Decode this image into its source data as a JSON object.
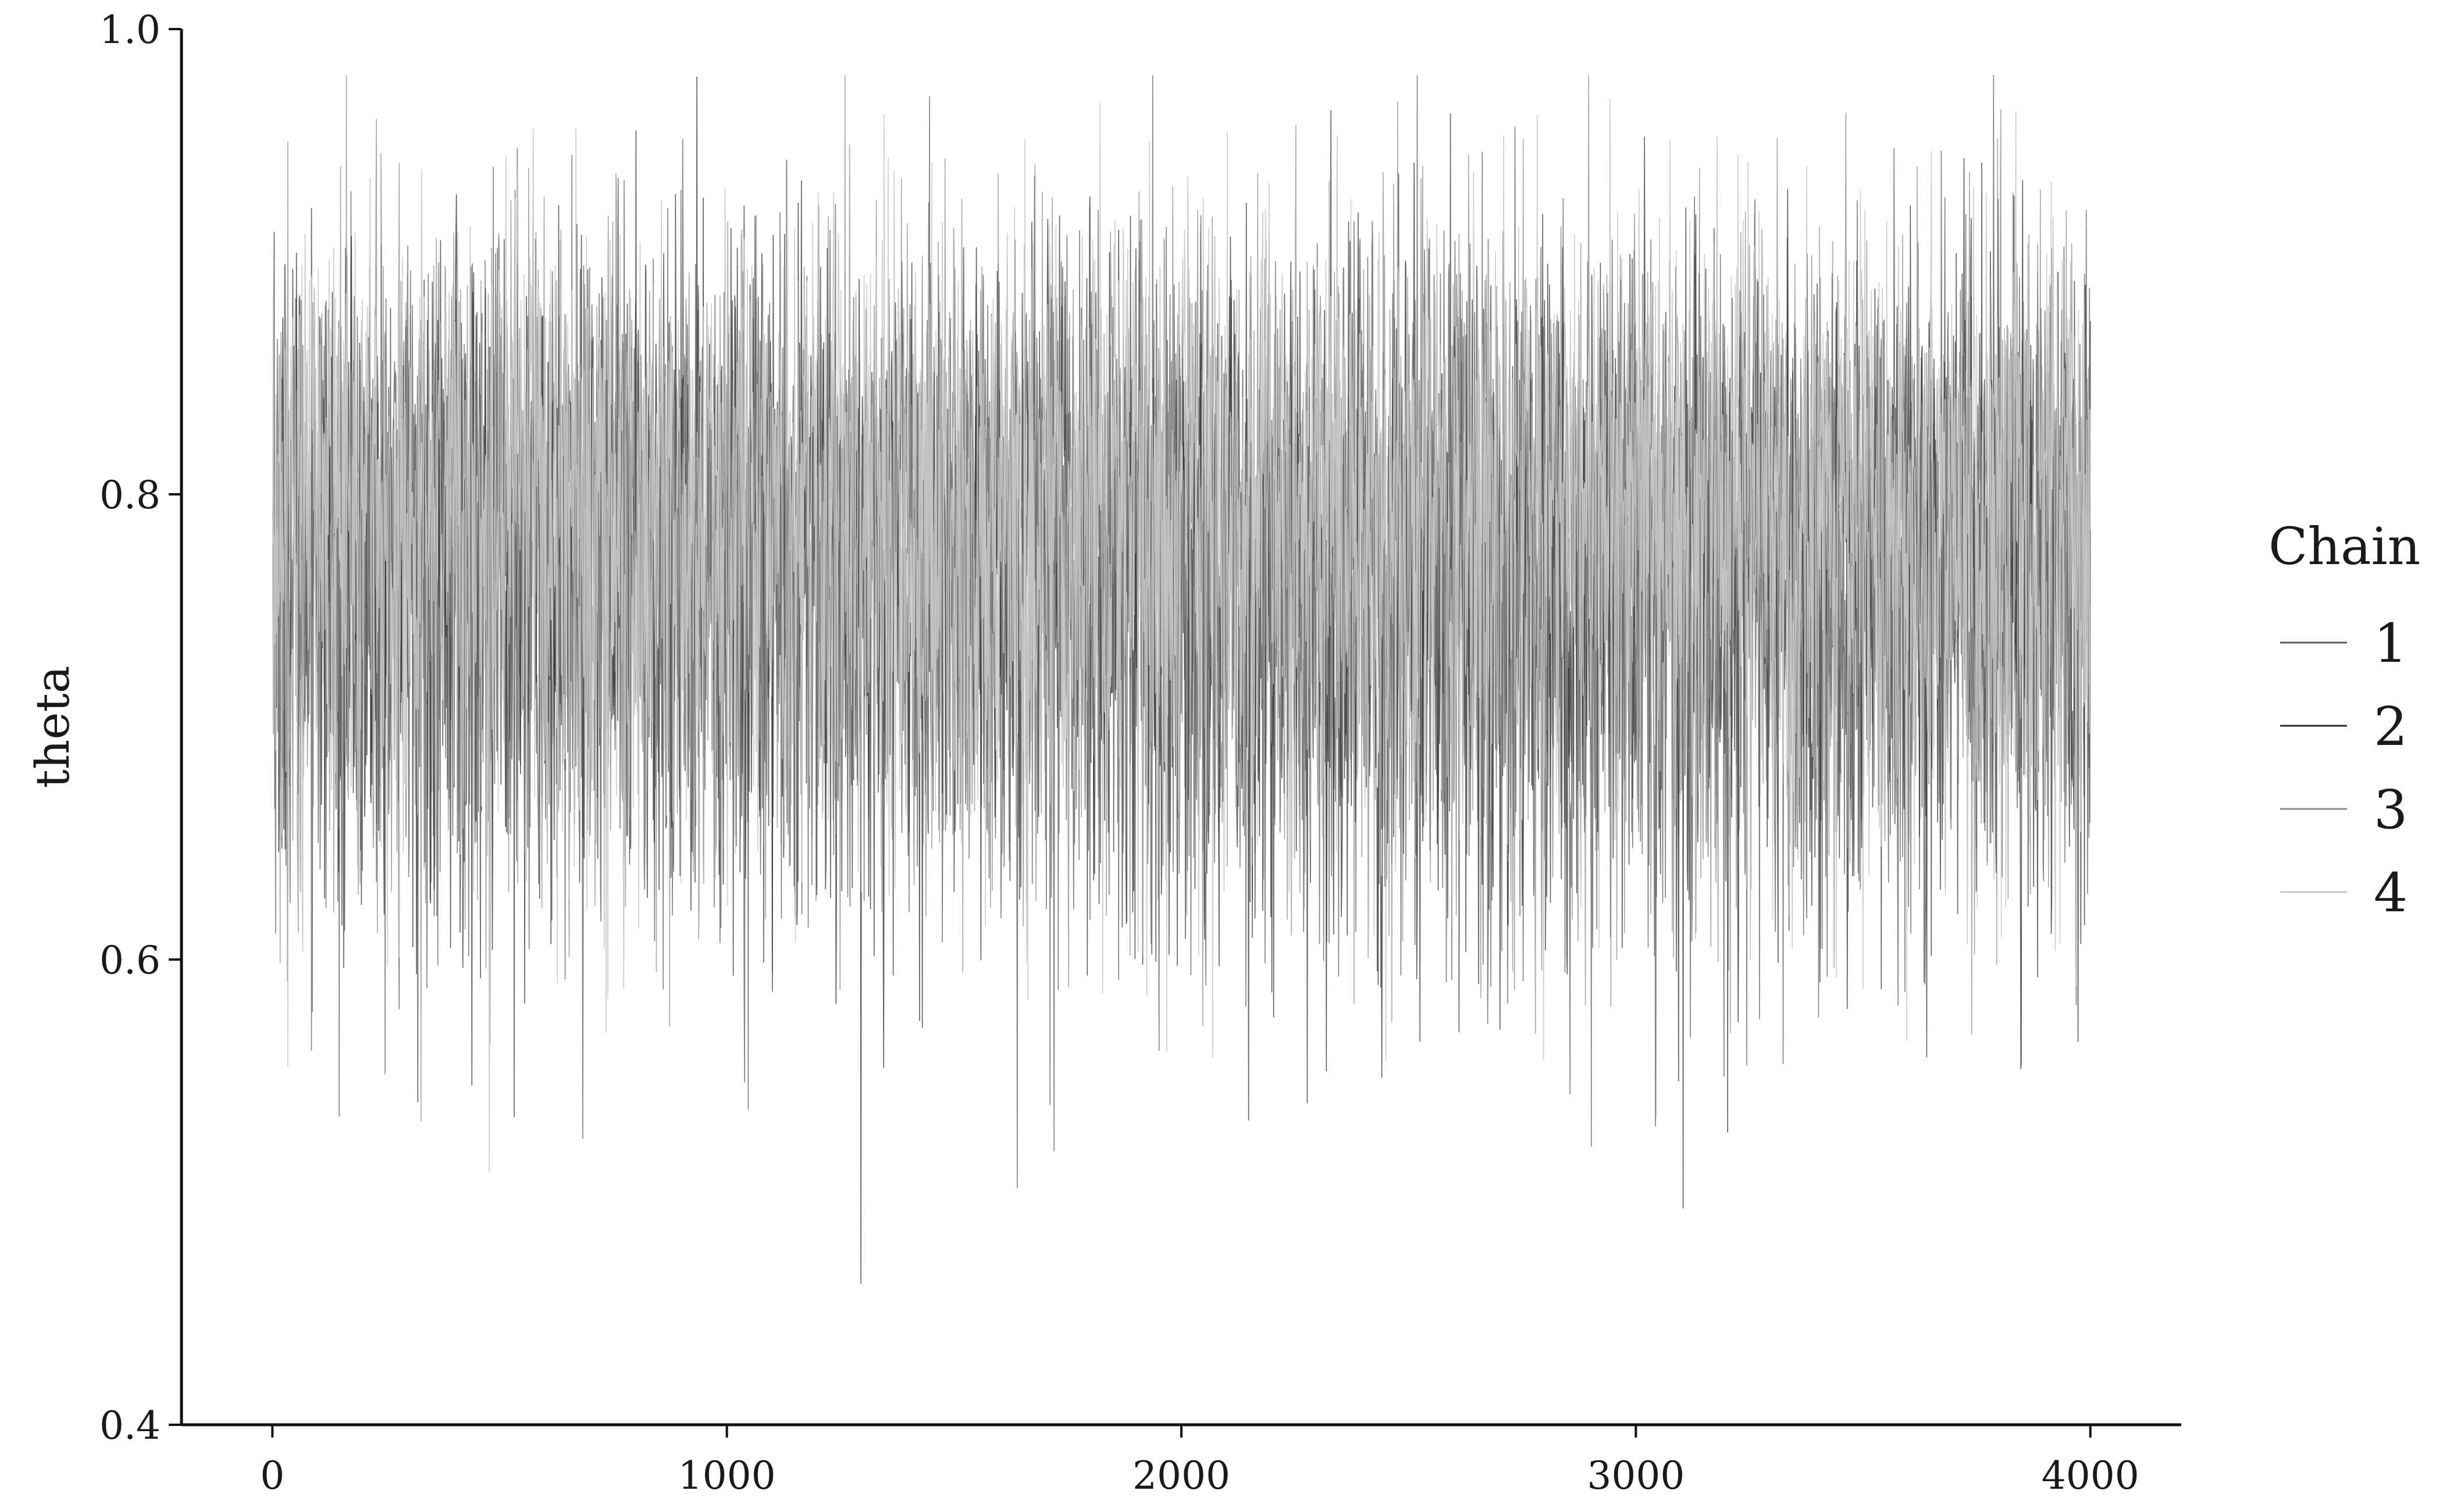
{
  "chart_data": {
    "type": "line",
    "title": "",
    "xlabel": "",
    "ylabel": "theta",
    "xlim": [
      -200,
      4200
    ],
    "ylim": [
      0.4,
      1.0
    ],
    "x_ticks": [
      0,
      1000,
      2000,
      3000,
      4000
    ],
    "y_ticks": [
      0.4,
      0.6,
      0.8,
      1.0
    ],
    "x_tick_labels": [
      "0",
      "1000",
      "2000",
      "3000",
      "4000"
    ],
    "y_tick_labels": [
      "0.4",
      "0.6",
      "0.8",
      "1.0"
    ],
    "grid": false,
    "legend": {
      "title": "Chain",
      "placement": "right"
    },
    "n_iterations": 4000,
    "series": [
      {
        "name": "1",
        "color": "#5a5a5a",
        "mean": 0.78,
        "sd": 0.085,
        "min": 0.43,
        "max": 0.98
      },
      {
        "name": "2",
        "color": "#2e2e2e",
        "mean": 0.78,
        "sd": 0.085,
        "min": 0.45,
        "max": 0.99
      },
      {
        "name": "3",
        "color": "#8c8c8c",
        "mean": 0.79,
        "sd": 0.08,
        "min": 0.44,
        "max": 0.98
      },
      {
        "name": "4",
        "color": "#c8c8c8",
        "mean": 0.8,
        "sd": 0.08,
        "min": 0.43,
        "max": 0.97
      }
    ]
  }
}
